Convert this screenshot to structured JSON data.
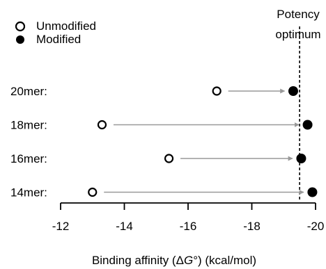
{
  "chart_data": {
    "type": "scatter",
    "xlabel_parts": [
      "Binding affinity (",
      "Δ",
      "G",
      "°) (kcal/mol)"
    ],
    "xlim": [
      -12,
      -20
    ],
    "x_ticks": [
      -12,
      -14,
      -16,
      -18,
      -20
    ],
    "x_tick_labels": [
      "-12",
      "-14",
      "-16",
      "-18",
      "-20"
    ],
    "categories": [
      "20mer:",
      "18mer:",
      "16mer:",
      "14mer:"
    ],
    "series": [
      {
        "name": "Unmodified",
        "marker": "open-circle",
        "values": [
          -16.9,
          -13.3,
          -15.4,
          -13.0
        ]
      },
      {
        "name": "Modified",
        "marker": "filled-circle",
        "values": [
          -19.3,
          -19.75,
          -19.55,
          -19.9
        ]
      }
    ],
    "annotation": {
      "lines": [
        "Potency",
        "optimum"
      ],
      "x": -19.5,
      "style": "dashed-vertical-line"
    },
    "legend": {
      "placement": "top-left"
    },
    "arrow_color": "#999999",
    "grid": false
  }
}
